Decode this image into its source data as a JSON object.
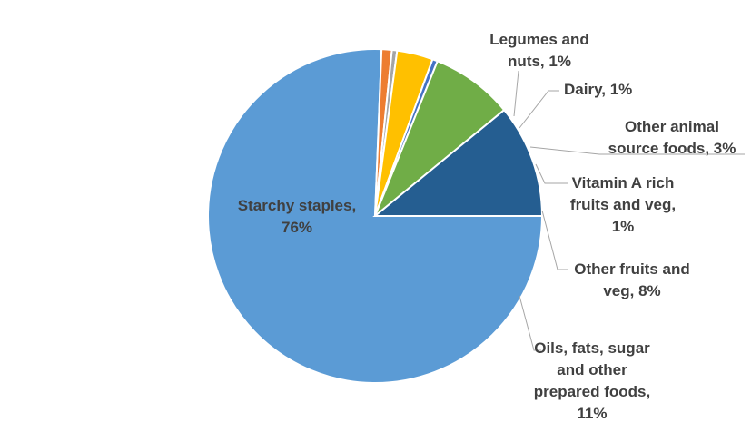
{
  "chart_data": {
    "type": "pie",
    "start_angle_deg": 0,
    "slices": [
      {
        "name": "Starchy staples",
        "label_lines": [
          "Starchy staples,",
          "76%"
        ],
        "value": 76,
        "color": "#5b9bd5"
      },
      {
        "name": "Legumes and nuts",
        "label_lines": [
          "Legumes and",
          "nuts, 1%"
        ],
        "value": 1,
        "color": "#ed7d31"
      },
      {
        "name": "Dairy",
        "label_lines": [
          "Dairy, 1%"
        ],
        "value": 0.5,
        "color": "#a5a5a5"
      },
      {
        "name": "Other animal source foods",
        "label_lines": [
          "Other animal",
          "source foods, 3%"
        ],
        "value": 3.5,
        "color": "#ffc000"
      },
      {
        "name": "Vitamin A rich fruits and veg",
        "label_lines": [
          "Vitamin A rich",
          "fruits and veg,",
          "1%"
        ],
        "value": 0.5,
        "color": "#4472c4"
      },
      {
        "name": "Other fruits and veg",
        "label_lines": [
          "Other fruits and",
          "veg, 8%"
        ],
        "value": 8,
        "color": "#70ad47"
      },
      {
        "name": "Oils, fats, sugar and other prepared foods",
        "label_lines": [
          "Oils, fats, sugar",
          "and other",
          "prepared foods,",
          "11%"
        ],
        "value": 11,
        "color": "#255e91"
      }
    ]
  }
}
